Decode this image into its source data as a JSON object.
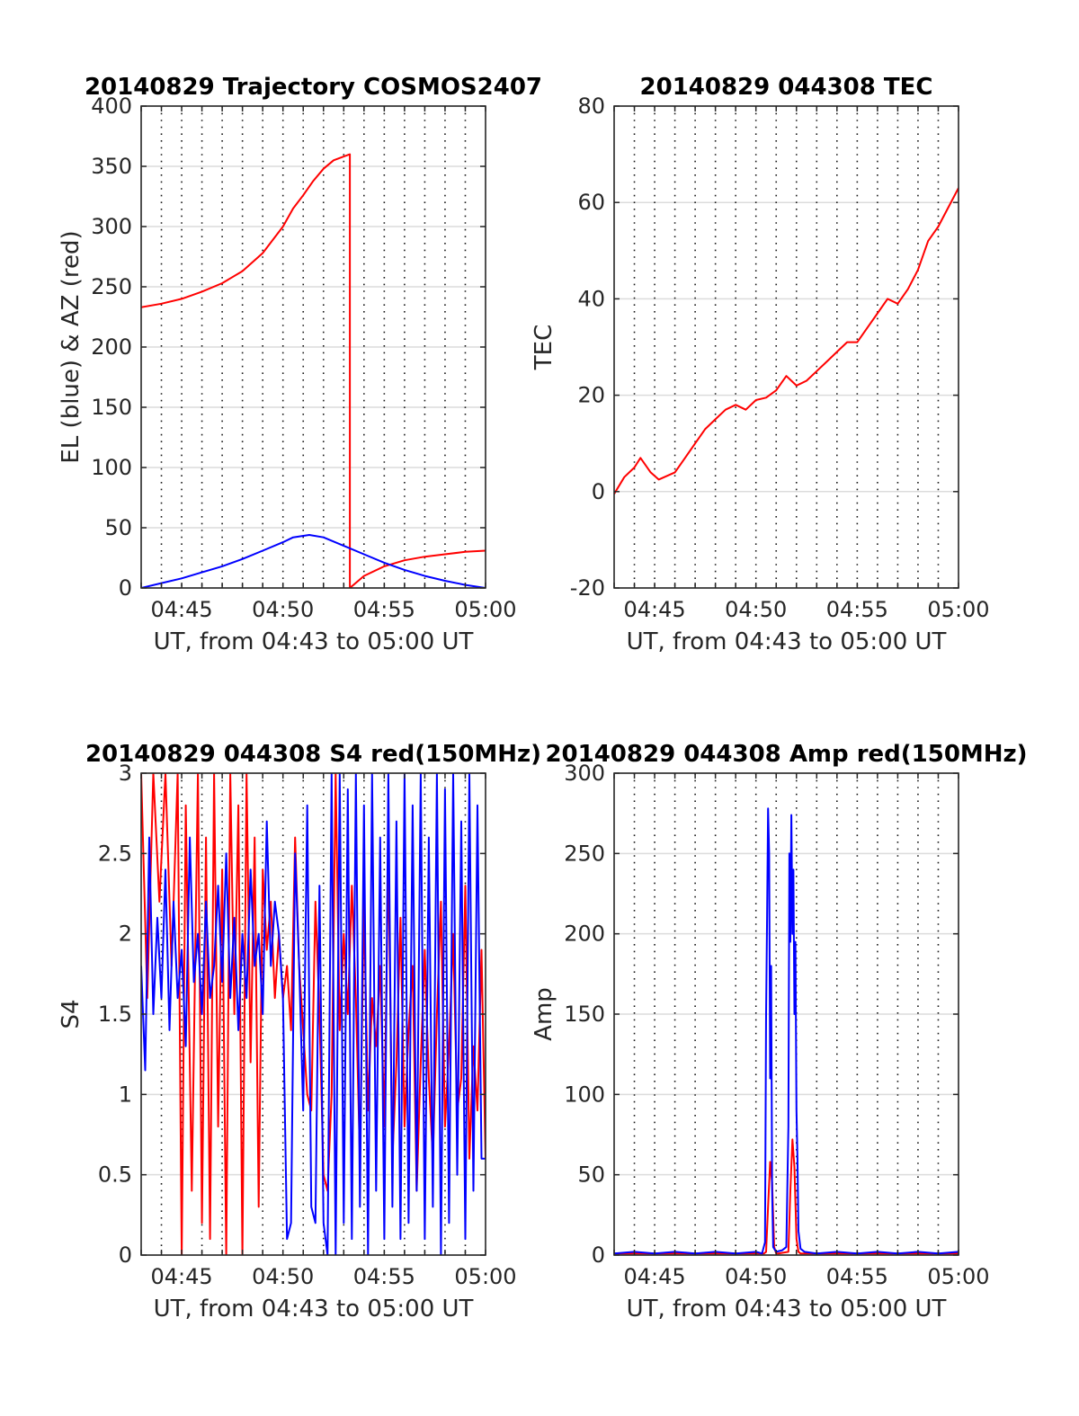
{
  "chart_data": [
    {
      "type": "line",
      "title": "20140829 Trajectory COSMOS2407",
      "xlabel": "UT, from 04:43 to 05:00 UT",
      "ylabel": "EL (blue) & AZ (red)",
      "xlim": [
        0,
        17
      ],
      "ylim": [
        0,
        400
      ],
      "yticks": [
        0,
        50,
        100,
        150,
        200,
        250,
        300,
        350,
        400
      ],
      "xticks": [
        {
          "v": 2,
          "label": "04:45"
        },
        {
          "v": 7,
          "label": "04:50"
        },
        {
          "v": 12,
          "label": "04:55"
        },
        {
          "v": 17,
          "label": "05:00"
        }
      ],
      "grid": true,
      "series": [
        {
          "color": "#ff0000",
          "x": [
            0,
            1,
            2,
            3,
            4,
            5,
            6,
            7,
            7.5,
            8,
            8.5,
            9,
            9.5,
            10.3,
            10.3,
            11,
            12,
            13,
            14,
            15,
            16,
            17
          ],
          "y": [
            233,
            236,
            240,
            246,
            253,
            263,
            278,
            300,
            315,
            326,
            338,
            348,
            355,
            360,
            0,
            10,
            18,
            23,
            26,
            28,
            30,
            31
          ]
        },
        {
          "color": "#0000ff",
          "x": [
            0,
            1,
            2,
            3,
            4,
            5,
            6,
            7,
            7.5,
            8.3,
            9,
            10,
            11,
            12,
            13,
            14,
            15,
            16,
            17
          ],
          "y": [
            0,
            4,
            8,
            13,
            18,
            24,
            31,
            38,
            42,
            44,
            42,
            35,
            28,
            21,
            15,
            10,
            6,
            2.5,
            0
          ]
        }
      ]
    },
    {
      "type": "line",
      "title": "20140829 044308 TEC",
      "xlabel": "UT, from 04:43 to 05:00 UT",
      "ylabel": "TEC",
      "xlim": [
        0,
        17
      ],
      "ylim": [
        -20,
        80
      ],
      "yticks": [
        -20,
        0,
        20,
        40,
        60,
        80
      ],
      "xticks": [
        {
          "v": 2,
          "label": "04:45"
        },
        {
          "v": 7,
          "label": "04:50"
        },
        {
          "v": 12,
          "label": "04:55"
        },
        {
          "v": 17,
          "label": "05:00"
        }
      ],
      "grid": true,
      "series": [
        {
          "color": "#ff0000",
          "x": [
            0,
            0.5,
            1,
            1.3,
            1.8,
            2.2,
            3,
            3.5,
            4,
            4.5,
            5,
            5.5,
            6,
            6.5,
            7,
            7.5,
            8,
            8.5,
            9,
            9.5,
            10,
            10.5,
            11,
            11.5,
            12,
            12.5,
            13,
            13.5,
            14,
            14.5,
            15,
            15.5,
            16,
            16.5,
            17
          ],
          "y": [
            -0.5,
            3,
            5,
            7,
            4,
            2.5,
            4,
            7,
            10,
            13,
            15,
            17,
            18,
            17,
            19,
            19.5,
            21,
            24,
            22,
            23,
            25,
            27,
            29,
            31,
            31,
            34,
            37,
            40,
            39,
            42,
            46,
            52,
            55,
            59,
            63
          ]
        }
      ]
    },
    {
      "type": "line",
      "title": "20140829 044308 S4 red(150MHz)",
      "xlabel": "UT, from 04:43 to 05:00 UT",
      "ylabel": "S4",
      "xlim": [
        0,
        17
      ],
      "ylim": [
        0,
        3
      ],
      "yticks": [
        0,
        0.5,
        1,
        1.5,
        2,
        2.5,
        3
      ],
      "ytick_labels": [
        "0",
        "0.5",
        "1",
        "1.5",
        "2",
        "2.5",
        "3"
      ],
      "xticks": [
        {
          "v": 2,
          "label": "04:45"
        },
        {
          "v": 7,
          "label": "04:50"
        },
        {
          "v": 12,
          "label": "04:55"
        },
        {
          "v": 17,
          "label": "05:00"
        }
      ],
      "grid": true,
      "series": [
        {
          "color": "#ff0000",
          "x": [
            0,
            0.3,
            0.6,
            0.9,
            1.2,
            1.5,
            1.8,
            2.0,
            2.2,
            2.5,
            2.8,
            3.0,
            3.2,
            3.4,
            3.6,
            3.8,
            4.0,
            4.2,
            4.4,
            4.6,
            4.8,
            5.0,
            5.2,
            5.4,
            5.6,
            5.8,
            6.0,
            6.2,
            6.4,
            6.6,
            6.8,
            7.0,
            7.2,
            7.4,
            7.6,
            7.8,
            8.0,
            8.2,
            8.4,
            8.6,
            8.8,
            9.0,
            9.2,
            9.4,
            9.6,
            9.8,
            10.0,
            10.2,
            10.4,
            10.6,
            10.8,
            11.0,
            11.2,
            11.4,
            11.6,
            11.8,
            12.0,
            12.2,
            12.4,
            12.6,
            12.8,
            13.0,
            13.2,
            13.4,
            13.6,
            13.8,
            14.0,
            14.2,
            14.4,
            14.6,
            14.8,
            15.0,
            15.2,
            15.4,
            15.6,
            15.8,
            16.0,
            16.2,
            16.4,
            16.6,
            16.8,
            17.0
          ],
          "y": [
            3,
            1.6,
            3,
            2.2,
            3,
            1.8,
            3,
            0,
            2.8,
            0.4,
            3,
            0.2,
            2.6,
            0.1,
            3,
            0.8,
            2.4,
            0,
            3,
            1.5,
            2.8,
            0,
            3,
            1.2,
            2.6,
            0.3,
            2.4,
            1.9,
            2.2,
            1.6,
            2.0,
            1.6,
            1.8,
            1.4,
            2.6,
            1.8,
            1.4,
            1.0,
            0.9,
            2.2,
            1.5,
            0.5,
            0.4,
            1.0,
            3.0,
            1.4,
            2.0,
            1.5,
            2.3,
            1.6,
            0.6,
            2.2,
            0.9,
            1.6,
            1.3,
            1.8,
            0.8,
            2.5,
            0.6,
            1.2,
            2.1,
            0.8,
            1.4,
            1.8,
            0.4,
            1.2,
            1.9,
            1.1,
            0.6,
            1.5,
            2.2,
            0.8,
            1.3,
            2.0,
            0.9,
            1.1,
            2.3,
            0.6,
            1.3,
            0.9,
            1.9,
            0.6
          ]
        },
        {
          "color": "#0000ff",
          "x": [
            0,
            0.2,
            0.4,
            0.6,
            0.8,
            1.0,
            1.2,
            1.4,
            1.6,
            1.8,
            2.0,
            2.2,
            2.4,
            2.6,
            2.8,
            3.0,
            3.2,
            3.4,
            3.6,
            3.8,
            4.0,
            4.2,
            4.4,
            4.6,
            4.8,
            5.0,
            5.2,
            5.4,
            5.6,
            5.8,
            6.0,
            6.2,
            6.4,
            6.6,
            6.8,
            7.0,
            7.2,
            7.4,
            7.6,
            7.8,
            8.0,
            8.2,
            8.4,
            8.6,
            8.8,
            9.0,
            9.2,
            9.4,
            9.6,
            9.8,
            10.0,
            10.2,
            10.4,
            10.6,
            10.8,
            11.0,
            11.2,
            11.4,
            11.6,
            11.8,
            12.0,
            12.2,
            12.4,
            12.6,
            12.8,
            13.0,
            13.2,
            13.4,
            13.6,
            13.8,
            14.0,
            14.2,
            14.4,
            14.6,
            14.8,
            15.0,
            15.2,
            15.4,
            15.6,
            15.8,
            16.0,
            16.2,
            16.4,
            16.6,
            16.8,
            17.0
          ],
          "y": [
            1.8,
            1.15,
            2.6,
            1.5,
            2.1,
            1.6,
            2.4,
            1.4,
            2.2,
            1.6,
            1.9,
            1.3,
            2.6,
            1.7,
            2.0,
            1.5,
            2.2,
            1.6,
            1.8,
            2.3,
            1.7,
            2.5,
            1.6,
            2.1,
            1.4,
            2.0,
            1.6,
            2.4,
            1.8,
            2.0,
            1.5,
            2.7,
            1.8,
            2.2,
            2.0,
            1.6,
            0.1,
            0.2,
            2.5,
            1.8,
            0.9,
            2.8,
            0.3,
            0.2,
            2.3,
            0.2,
            0,
            3,
            0,
            3,
            0.2,
            2.9,
            0.1,
            3,
            0.3,
            2.8,
            0,
            3,
            0.4,
            2.6,
            0.1,
            3,
            0.3,
            2.7,
            0.1,
            3,
            0.2,
            2.8,
            0.4,
            3,
            0.1,
            2.6,
            0.3,
            3,
            0,
            2.9,
            0.2,
            3,
            0.5,
            2.7,
            0.1,
            3,
            0.4,
            2.8,
            0.6,
            0.6
          ]
        }
      ]
    },
    {
      "type": "line",
      "title": "20140829 044308 Amp red(150MHz)",
      "xlabel": "UT, from 04:43 to 05:00 UT",
      "ylabel": "Amp",
      "xlim": [
        0,
        17
      ],
      "ylim": [
        0,
        300
      ],
      "yticks": [
        0,
        50,
        100,
        150,
        200,
        250,
        300
      ],
      "xticks": [
        {
          "v": 2,
          "label": "04:45"
        },
        {
          "v": 7,
          "label": "04:50"
        },
        {
          "v": 12,
          "label": "04:55"
        },
        {
          "v": 17,
          "label": "05:00"
        }
      ],
      "grid": true,
      "series": [
        {
          "color": "#ff0000",
          "x": [
            0,
            7.4,
            7.5,
            7.6,
            7.7,
            7.8,
            7.9,
            8.0,
            8.1,
            8.6,
            8.7,
            8.8,
            8.9,
            9.0,
            9.1,
            9.2,
            17
          ],
          "y": [
            1,
            1,
            2,
            30,
            58,
            45,
            5,
            1,
            1,
            2,
            40,
            72,
            55,
            10,
            2,
            1,
            1
          ]
        },
        {
          "color": "#0000ff",
          "x": [
            0,
            1,
            2,
            3,
            4,
            5,
            6,
            7,
            7.3,
            7.45,
            7.5,
            7.55,
            7.6,
            7.65,
            7.7,
            7.75,
            7.8,
            7.85,
            8.0,
            8.3,
            8.5,
            8.6,
            8.65,
            8.7,
            8.75,
            8.8,
            8.85,
            8.9,
            8.95,
            9.0,
            9.05,
            9.1,
            9.2,
            9.4,
            10,
            11,
            12,
            13,
            14,
            15,
            16,
            17
          ],
          "y": [
            1,
            2,
            1,
            2,
            1,
            2,
            1,
            2,
            1,
            8,
            150,
            210,
            278,
            250,
            110,
            180,
            40,
            5,
            2,
            3,
            5,
            80,
            250,
            195,
            274,
            200,
            240,
            150,
            195,
            90,
            60,
            15,
            4,
            2,
            1,
            2,
            1,
            2,
            1,
            2,
            1,
            2
          ]
        }
      ]
    }
  ]
}
